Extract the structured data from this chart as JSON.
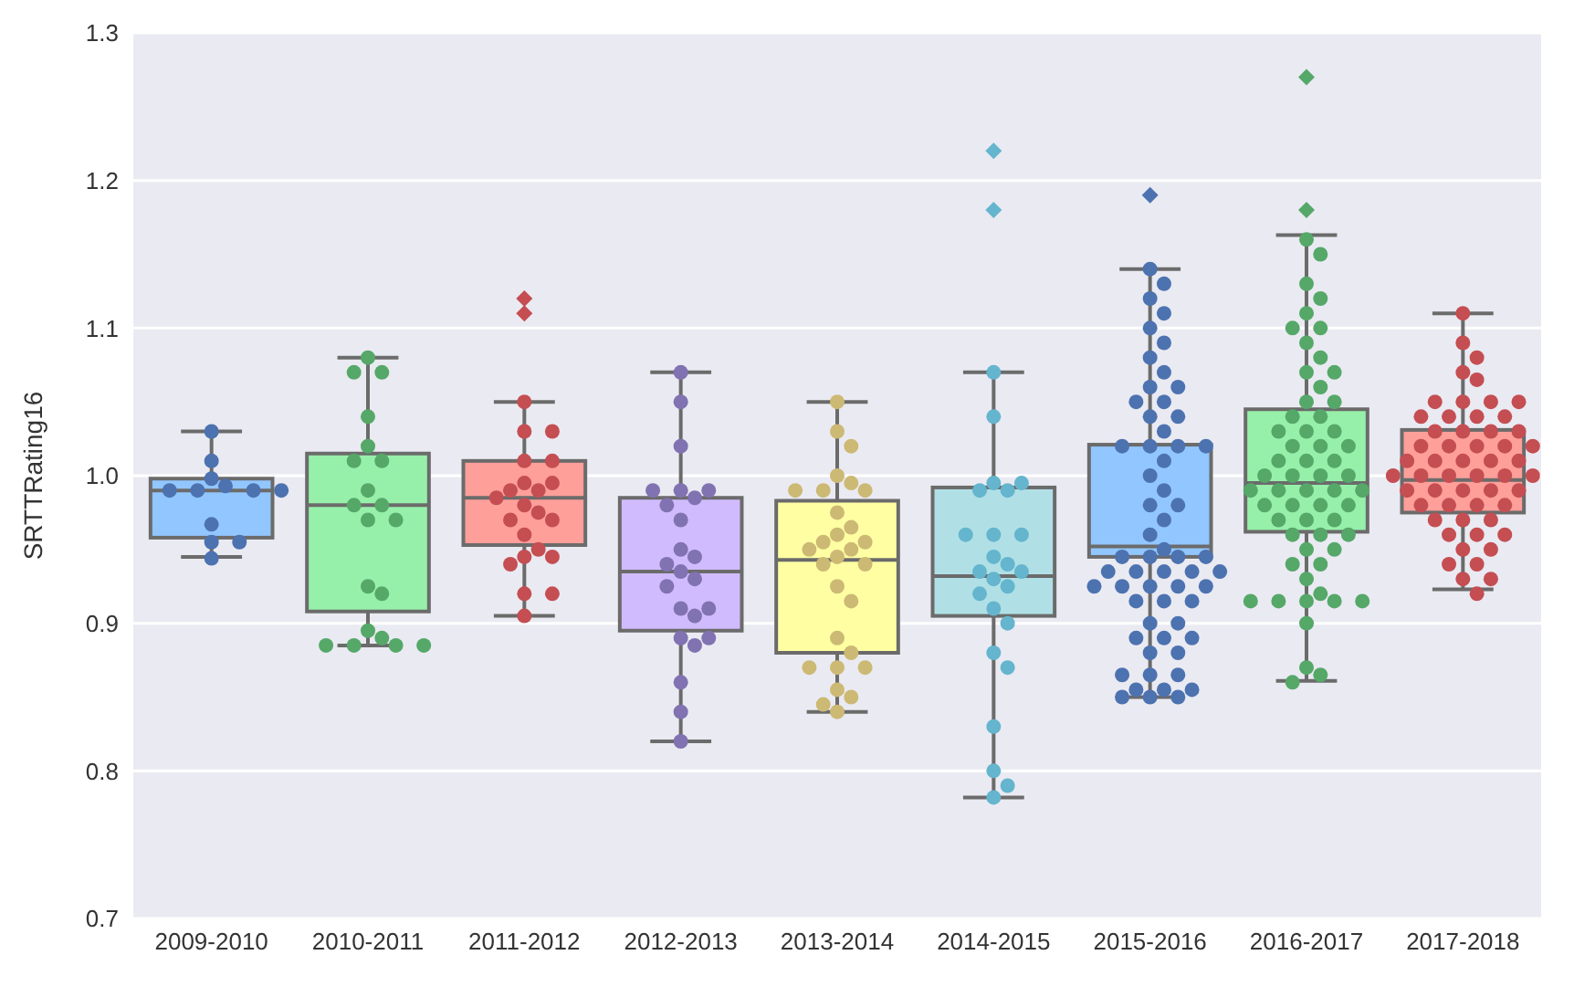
{
  "chart_data": {
    "type": "box",
    "ylabel": "SRTTRating16",
    "categories": [
      "2009-2010",
      "2010-2011",
      "2011-2012",
      "2012-2013",
      "2013-2014",
      "2014-2015",
      "2015-2016",
      "2016-2017",
      "2017-2018"
    ],
    "ylim": [
      0.7,
      1.3
    ],
    "yticks": [
      0.7,
      0.8,
      0.9,
      {
        "value": 1,
        "label": "1.0"
      },
      1.1,
      1.2,
      1.3
    ],
    "grid": "y",
    "marker": "circle",
    "series": [
      {
        "colors": [
          "#92c6ff",
          "#97f0aa",
          "#ff9f9a",
          "#d0bbff",
          "#fffea3",
          "#b0e0e6",
          "#92c6ff",
          "#97f0aa",
          "#ff9f9a"
        ],
        "boxes": [
          {
            "low": 0.945,
            "q1": 0.958,
            "median": 0.99,
            "q3": 0.998,
            "high": 1.03
          },
          {
            "low": 0.885,
            "q1": 0.908,
            "median": 0.98,
            "q3": 1.015,
            "high": 1.08
          },
          {
            "low": 0.905,
            "q1": 0.953,
            "median": 0.985,
            "q3": 1.01,
            "high": 1.05,
            "outliers": [
              1.11,
              1.12
            ]
          },
          {
            "low": 0.82,
            "q1": 0.895,
            "median": 0.935,
            "q3": 0.985,
            "high": 1.07
          },
          {
            "low": 0.84,
            "q1": 0.88,
            "median": 0.943,
            "q3": 0.983,
            "high": 1.05
          },
          {
            "low": 0.782,
            "q1": 0.905,
            "median": 0.932,
            "q3": 0.992,
            "high": 1.07,
            "outliers": [
              1.18,
              1.22
            ]
          },
          {
            "low": 0.85,
            "q1": 0.945,
            "median": 0.952,
            "q3": 1.021,
            "high": 1.14,
            "outliers": [
              1.19
            ]
          },
          {
            "low": 0.861,
            "q1": 0.962,
            "median": 0.995,
            "q3": 1.045,
            "high": 1.163,
            "outliers": [
              1.18,
              1.27
            ]
          },
          {
            "low": 0.923,
            "q1": 0.975,
            "median": 0.997,
            "q3": 1.031,
            "high": 1.11
          }
        ]
      },
      {
        "type": "scatter",
        "color": "#4c72b0",
        "x": [
          "2009-2010",
          "2009-2010",
          "2009-2010",
          "2009-2010",
          "2009-2010",
          "2009-2010",
          "2009-2010",
          "2009-2010",
          "2009-2010",
          "2009-2010",
          "2009-2010",
          "2009-2010"
        ],
        "values": [
          1.03,
          1.01,
          0.998,
          0.993,
          0.99,
          0.99,
          0.99,
          0.99,
          0.967,
          0.955,
          0.955,
          0.944
        ]
      },
      {
        "type": "scatter",
        "color": "#55a868",
        "x": [
          "2010-2011",
          "2010-2011",
          "2010-2011",
          "2010-2011",
          "2010-2011",
          "2010-2011",
          "2010-2011",
          "2010-2011",
          "2010-2011",
          "2010-2011",
          "2010-2011",
          "2010-2011",
          "2010-2011",
          "2010-2011",
          "2010-2011",
          "2010-2011",
          "2010-2011",
          "2010-2011",
          "2010-2011",
          "2010-2011"
        ],
        "values": [
          1.08,
          1.07,
          1.07,
          1.04,
          1.02,
          1.01,
          1.01,
          0.99,
          0.98,
          0.98,
          0.97,
          0.97,
          0.925,
          0.92,
          0.895,
          0.89,
          0.885,
          0.885,
          0.885,
          0.885
        ]
      },
      {
        "type": "scatter",
        "color": "#c44e52",
        "x": [
          "2011-2012",
          "2011-2012",
          "2011-2012",
          "2011-2012",
          "2011-2012",
          "2011-2012",
          "2011-2012",
          "2011-2012",
          "2011-2012",
          "2011-2012",
          "2011-2012",
          "2011-2012",
          "2011-2012",
          "2011-2012",
          "2011-2012",
          "2011-2012",
          "2011-2012",
          "2011-2012",
          "2011-2012",
          "2011-2012",
          "2011-2012",
          "2011-2012"
        ],
        "values": [
          1.05,
          1.03,
          1.03,
          1.01,
          1.01,
          0.995,
          0.995,
          0.99,
          0.99,
          0.985,
          0.98,
          0.975,
          0.97,
          0.97,
          0.96,
          0.95,
          0.945,
          0.945,
          0.94,
          0.92,
          0.92,
          0.905
        ]
      },
      {
        "type": "scatter",
        "color": "#8172b2",
        "x": [
          "2012-2013",
          "2012-2013",
          "2012-2013",
          "2012-2013",
          "2012-2013",
          "2012-2013",
          "2012-2013",
          "2012-2013",
          "2012-2013",
          "2012-2013",
          "2012-2013",
          "2012-2013",
          "2012-2013",
          "2012-2013",
          "2012-2013",
          "2012-2013",
          "2012-2013",
          "2012-2013",
          "2012-2013",
          "2012-2013",
          "2012-2013",
          "2012-2013",
          "2012-2013",
          "2012-2013"
        ],
        "values": [
          1.07,
          1.05,
          1.02,
          0.99,
          0.99,
          0.99,
          0.985,
          0.98,
          0.97,
          0.95,
          0.945,
          0.94,
          0.935,
          0.93,
          0.925,
          0.91,
          0.91,
          0.905,
          0.89,
          0.89,
          0.885,
          0.86,
          0.84,
          0.82
        ]
      },
      {
        "type": "scatter",
        "color": "#ccb974",
        "x": [
          "2013-2014",
          "2013-2014",
          "2013-2014",
          "2013-2014",
          "2013-2014",
          "2013-2014",
          "2013-2014",
          "2013-2014",
          "2013-2014",
          "2013-2014",
          "2013-2014",
          "2013-2014",
          "2013-2014",
          "2013-2014",
          "2013-2014",
          "2013-2014",
          "2013-2014",
          "2013-2014",
          "2013-2014",
          "2013-2014",
          "2013-2014",
          "2013-2014",
          "2013-2014",
          "2013-2014",
          "2013-2014",
          "2013-2014",
          "2013-2014",
          "2013-2014",
          "2013-2014"
        ],
        "values": [
          1.05,
          1.03,
          1.02,
          1.0,
          0.995,
          0.99,
          0.99,
          0.99,
          0.975,
          0.965,
          0.96,
          0.955,
          0.955,
          0.95,
          0.95,
          0.945,
          0.94,
          0.94,
          0.925,
          0.915,
          0.89,
          0.88,
          0.87,
          0.87,
          0.87,
          0.855,
          0.85,
          0.845,
          0.84
        ]
      },
      {
        "type": "scatter",
        "color": "#64b5cd",
        "x": [
          "2014-2015",
          "2014-2015",
          "2014-2015",
          "2014-2015",
          "2014-2015",
          "2014-2015",
          "2014-2015",
          "2014-2015",
          "2014-2015",
          "2014-2015",
          "2014-2015",
          "2014-2015",
          "2014-2015",
          "2014-2015",
          "2014-2015",
          "2014-2015",
          "2014-2015",
          "2014-2015",
          "2014-2015",
          "2014-2015",
          "2014-2015",
          "2014-2015",
          "2014-2015",
          "2014-2015"
        ],
        "values": [
          1.07,
          1.04,
          0.995,
          0.995,
          0.99,
          0.99,
          0.96,
          0.96,
          0.96,
          0.945,
          0.94,
          0.935,
          0.935,
          0.93,
          0.925,
          0.92,
          0.91,
          0.9,
          0.88,
          0.87,
          0.83,
          0.8,
          0.79,
          0.782
        ]
      },
      {
        "type": "scatter",
        "color": "#4c72b0",
        "x": [
          "2015-2016",
          "2015-2016",
          "2015-2016",
          "2015-2016",
          "2015-2016",
          "2015-2016",
          "2015-2016",
          "2015-2016",
          "2015-2016",
          "2015-2016",
          "2015-2016",
          "2015-2016",
          "2015-2016",
          "2015-2016",
          "2015-2016",
          "2015-2016",
          "2015-2016",
          "2015-2016",
          "2015-2016",
          "2015-2016",
          "2015-2016",
          "2015-2016",
          "2015-2016",
          "2015-2016",
          "2015-2016",
          "2015-2016",
          "2015-2016",
          "2015-2016",
          "2015-2016",
          "2015-2016",
          "2015-2016",
          "2015-2016",
          "2015-2016",
          "2015-2016",
          "2015-2016",
          "2015-2016",
          "2015-2016",
          "2015-2016",
          "2015-2016",
          "2015-2016",
          "2015-2016",
          "2015-2016",
          "2015-2016",
          "2015-2016",
          "2015-2016",
          "2015-2016",
          "2015-2016",
          "2015-2016",
          "2015-2016",
          "2015-2016",
          "2015-2016",
          "2015-2016",
          "2015-2016",
          "2015-2016",
          "2015-2016",
          "2015-2016",
          "2015-2016",
          "2015-2016",
          "2015-2016",
          "2015-2016"
        ],
        "values": [
          1.14,
          1.13,
          1.12,
          1.11,
          1.1,
          1.09,
          1.08,
          1.07,
          1.06,
          1.06,
          1.05,
          1.05,
          1.04,
          1.04,
          1.03,
          1.02,
          1.02,
          1.02,
          1.02,
          1.01,
          1.0,
          0.99,
          0.98,
          0.98,
          0.97,
          0.96,
          0.95,
          0.945,
          0.945,
          0.945,
          0.945,
          0.935,
          0.935,
          0.935,
          0.935,
          0.935,
          0.925,
          0.925,
          0.925,
          0.925,
          0.925,
          0.915,
          0.915,
          0.915,
          0.9,
          0.9,
          0.89,
          0.89,
          0.89,
          0.88,
          0.88,
          0.865,
          0.865,
          0.865,
          0.855,
          0.855,
          0.855,
          0.85,
          0.85,
          0.85
        ]
      },
      {
        "type": "scatter",
        "color": "#55a868",
        "x": [
          "2016-2017",
          "2016-2017",
          "2016-2017",
          "2016-2017",
          "2016-2017",
          "2016-2017",
          "2016-2017",
          "2016-2017",
          "2016-2017",
          "2016-2017",
          "2016-2017",
          "2016-2017",
          "2016-2017",
          "2016-2017",
          "2016-2017",
          "2016-2017",
          "2016-2017",
          "2016-2017",
          "2016-2017",
          "2016-2017",
          "2016-2017",
          "2016-2017",
          "2016-2017",
          "2016-2017",
          "2016-2017",
          "2016-2017",
          "2016-2017",
          "2016-2017",
          "2016-2017",
          "2016-2017",
          "2016-2017",
          "2016-2017",
          "2016-2017",
          "2016-2017",
          "2016-2017",
          "2016-2017",
          "2016-2017",
          "2016-2017",
          "2016-2017",
          "2016-2017",
          "2016-2017",
          "2016-2017",
          "2016-2017",
          "2016-2017",
          "2016-2017",
          "2016-2017",
          "2016-2017",
          "2016-2017",
          "2016-2017",
          "2016-2017",
          "2016-2017",
          "2016-2017",
          "2016-2017",
          "2016-2017",
          "2016-2017",
          "2016-2017",
          "2016-2017",
          "2016-2017",
          "2016-2017"
        ],
        "values": [
          1.16,
          1.15,
          1.13,
          1.12,
          1.11,
          1.1,
          1.1,
          1.09,
          1.08,
          1.07,
          1.07,
          1.06,
          1.05,
          1.05,
          1.04,
          1.04,
          1.03,
          1.03,
          1.03,
          1.02,
          1.02,
          1.02,
          1.01,
          1.01,
          1.01,
          1.0,
          1.0,
          1.0,
          1.0,
          0.99,
          0.99,
          0.99,
          0.99,
          0.99,
          0.98,
          0.98,
          0.98,
          0.98,
          0.97,
          0.97,
          0.97,
          0.96,
          0.96,
          0.96,
          0.95,
          0.95,
          0.94,
          0.94,
          0.93,
          0.92,
          0.915,
          0.915,
          0.915,
          0.915,
          0.915,
          0.9,
          0.87,
          0.865,
          0.86
        ]
      },
      {
        "type": "scatter",
        "color": "#c44e52",
        "x": [
          "2017-2018",
          "2017-2018",
          "2017-2018",
          "2017-2018",
          "2017-2018",
          "2017-2018",
          "2017-2018",
          "2017-2018",
          "2017-2018",
          "2017-2018",
          "2017-2018",
          "2017-2018",
          "2017-2018",
          "2017-2018",
          "2017-2018",
          "2017-2018",
          "2017-2018",
          "2017-2018",
          "2017-2018",
          "2017-2018",
          "2017-2018",
          "2017-2018",
          "2017-2018",
          "2017-2018",
          "2017-2018",
          "2017-2018",
          "2017-2018",
          "2017-2018",
          "2017-2018",
          "2017-2018",
          "2017-2018",
          "2017-2018",
          "2017-2018",
          "2017-2018",
          "2017-2018",
          "2017-2018",
          "2017-2018",
          "2017-2018",
          "2017-2018",
          "2017-2018",
          "2017-2018",
          "2017-2018",
          "2017-2018",
          "2017-2018",
          "2017-2018",
          "2017-2018",
          "2017-2018",
          "2017-2018",
          "2017-2018",
          "2017-2018",
          "2017-2018",
          "2017-2018",
          "2017-2018",
          "2017-2018",
          "2017-2018"
        ],
        "values": [
          1.11,
          1.09,
          1.08,
          1.07,
          1.065,
          1.05,
          1.05,
          1.05,
          1.05,
          1.04,
          1.04,
          1.04,
          1.04,
          1.03,
          1.03,
          1.03,
          1.03,
          1.02,
          1.02,
          1.02,
          1.02,
          1.02,
          1.01,
          1.01,
          1.01,
          1.01,
          1.01,
          1.0,
          1.0,
          1.0,
          1.0,
          1.0,
          1.0,
          0.99,
          0.99,
          0.99,
          0.99,
          0.99,
          0.98,
          0.98,
          0.98,
          0.98,
          0.97,
          0.97,
          0.97,
          0.96,
          0.96,
          0.96,
          0.95,
          0.95,
          0.94,
          0.94,
          0.93,
          0.93,
          0.92
        ]
      }
    ]
  }
}
